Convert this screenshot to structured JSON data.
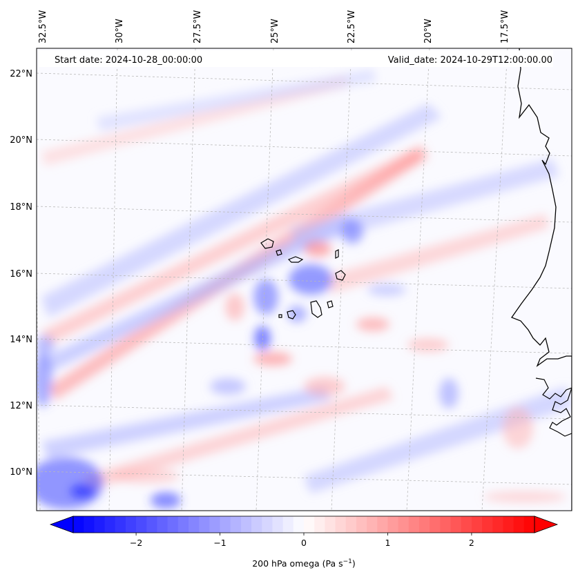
{
  "map": {
    "start_date": "Start date: 2024-10-28_00:00:00",
    "valid_date": "Valid_date: 2024-10-29T12:00:00.00",
    "lon_labels": [
      "32.5°W",
      "30°W",
      "27.5°W",
      "25°W",
      "22.5°W",
      "20°W",
      "17.5°W"
    ],
    "lat_labels": [
      "22°N",
      "20°N",
      "18°N",
      "16°N",
      "14°N",
      "12°N",
      "10°N"
    ],
    "field": "200 hPa omega",
    "colormap": "bwr",
    "colors": {
      "negative": "#0000ff",
      "zero": "#ffffff",
      "positive": "#ff0000",
      "coast": "#000000",
      "grid": "#b0b0b0"
    }
  },
  "colorbar": {
    "label_main": "200 hPa omega (Pa s",
    "label_sup": "−1",
    "label_close": ")",
    "ticks": [
      "−2",
      "−1",
      "0",
      "1",
      "2"
    ],
    "min": -2.75,
    "max": 2.75,
    "tick_values": [
      -2,
      -1,
      0,
      1,
      2
    ]
  }
}
